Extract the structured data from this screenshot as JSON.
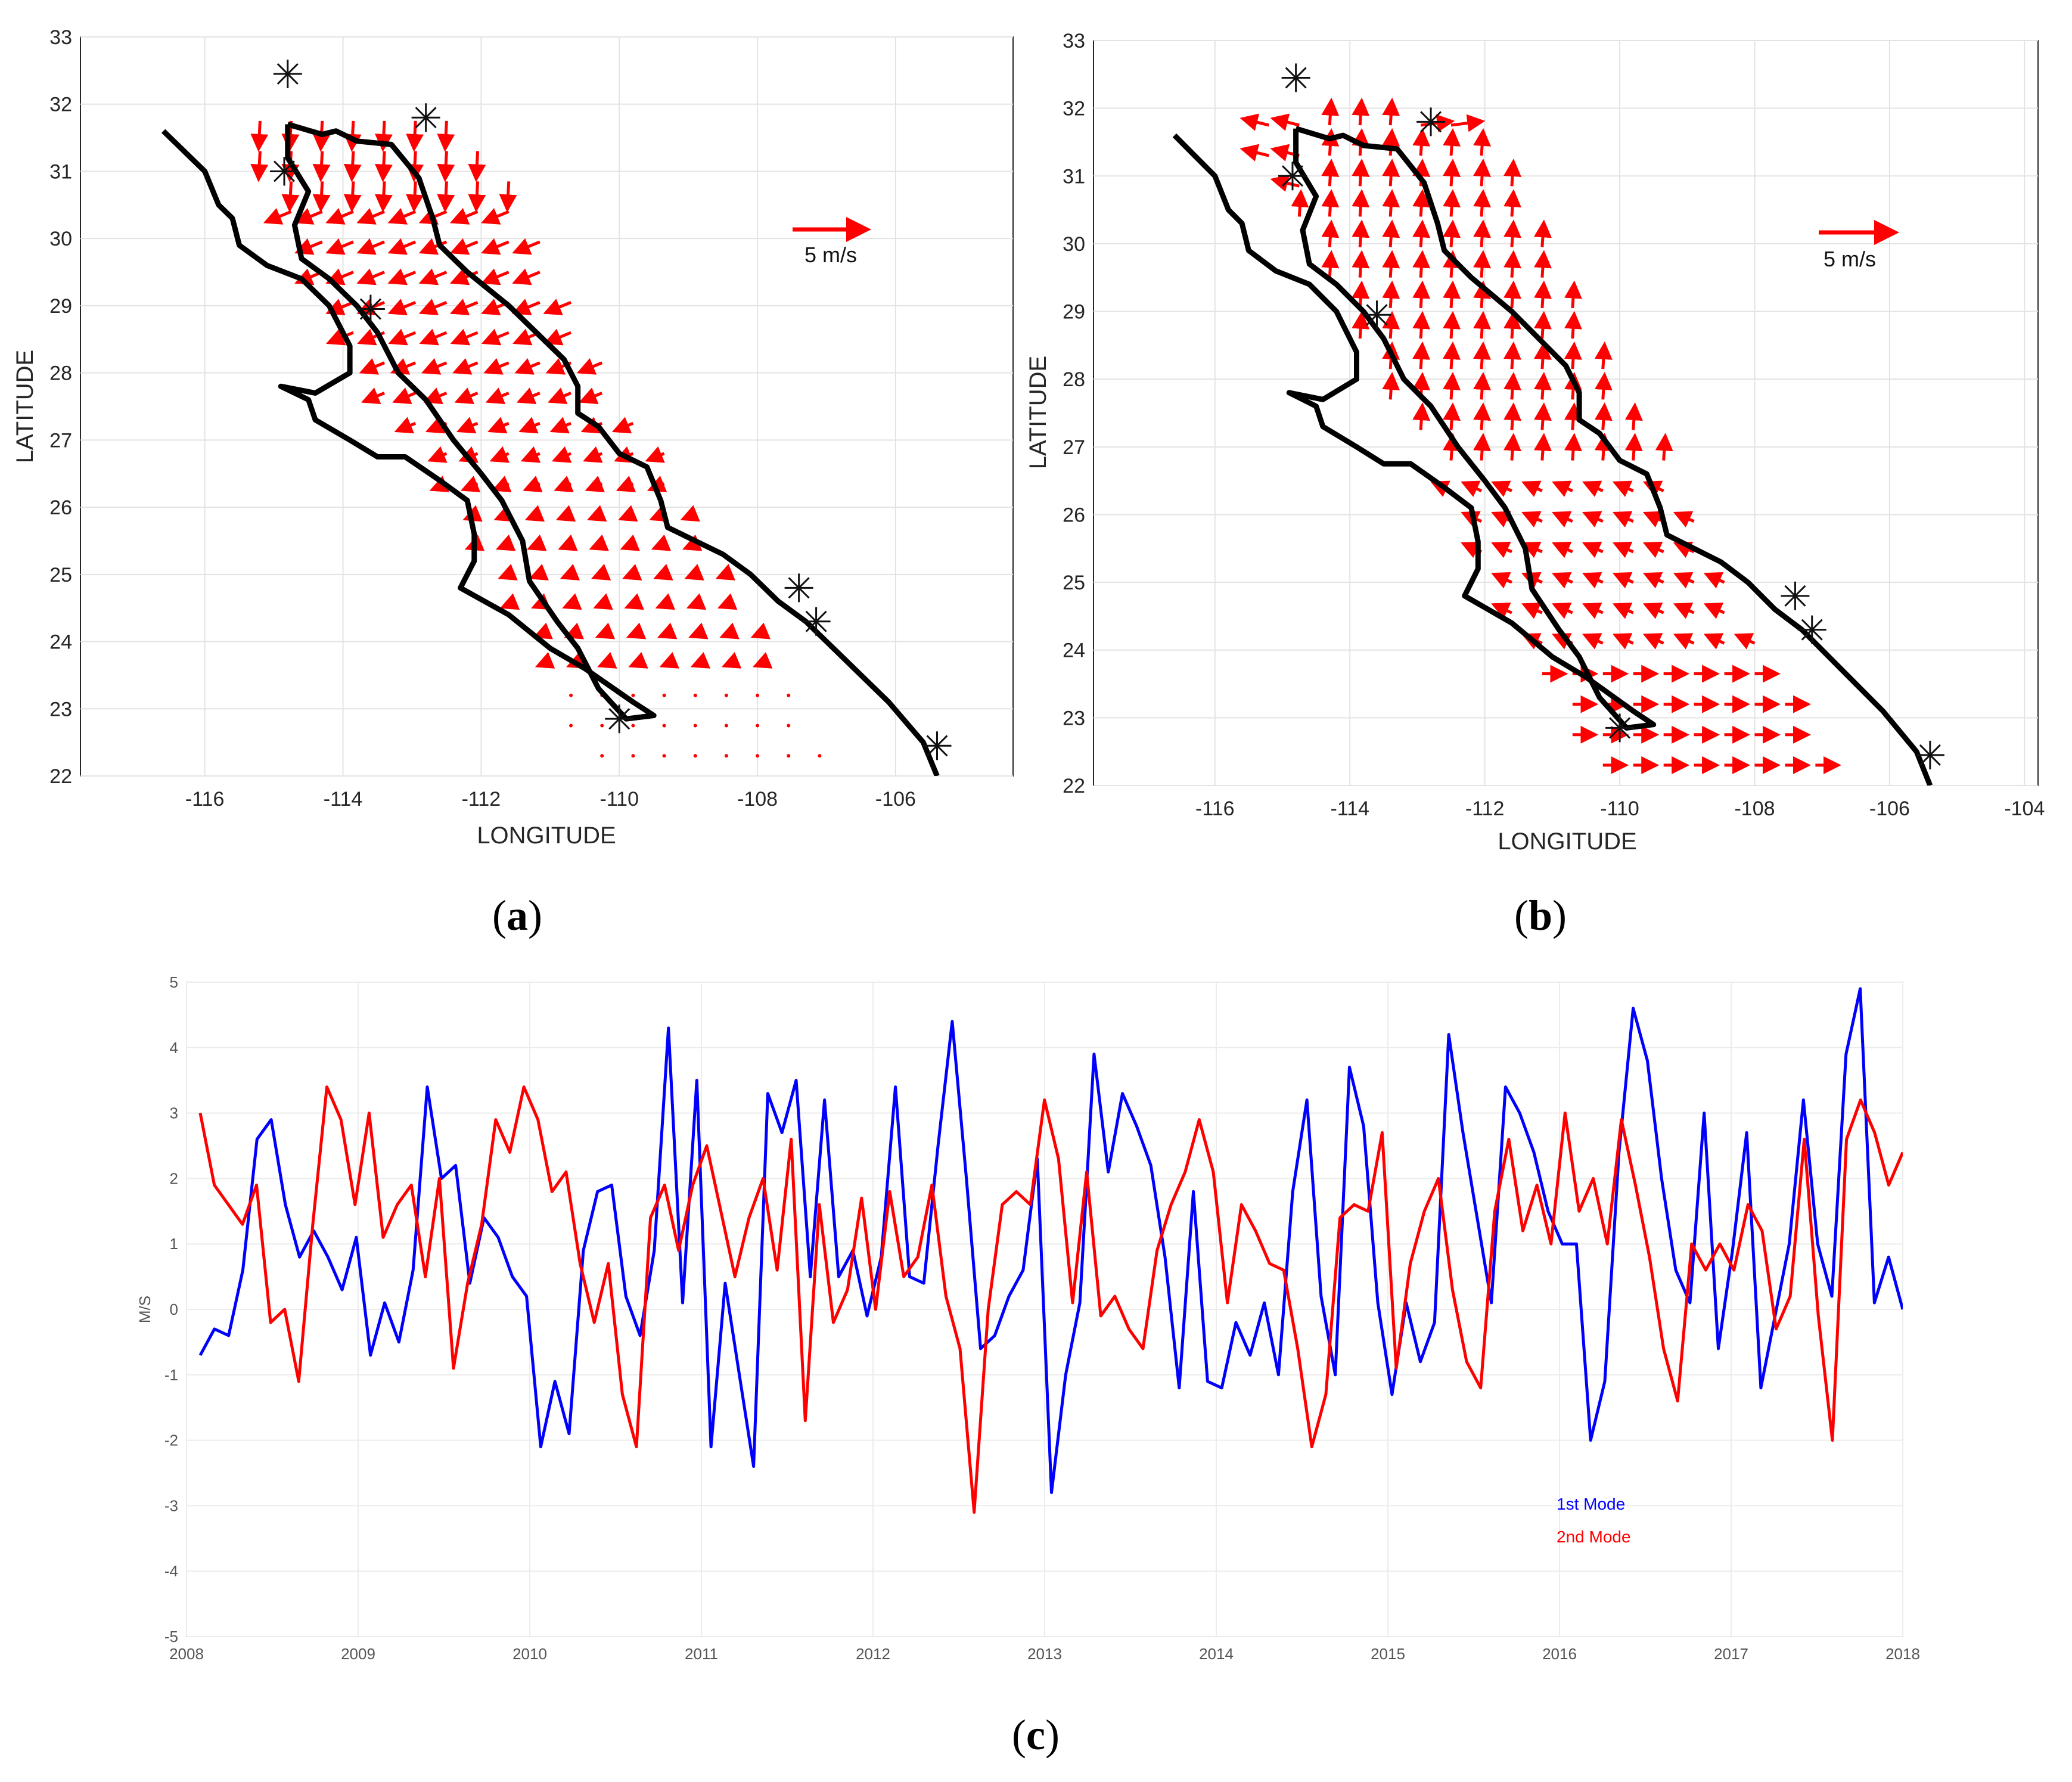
{
  "panels": [
    {
      "id": "a",
      "label": "a",
      "xlabel": "LONGITUDE",
      "ylabel": "LATITUDE",
      "xticks": [
        "-116",
        "-114",
        "-112",
        "-110",
        "-108",
        "-106"
      ],
      "yticks": [
        "22",
        "23",
        "24",
        "25",
        "26",
        "27",
        "28",
        "29",
        "30",
        "31",
        "32",
        "33"
      ],
      "scale_label": "5 m/s"
    },
    {
      "id": "b",
      "label": "b",
      "xlabel": "LONGITUDE",
      "ylabel": "LATITUDE",
      "xticks": [
        "-116",
        "-114",
        "-112",
        "-110",
        "-108",
        "-106",
        "-104"
      ],
      "yticks": [
        "22",
        "23",
        "24",
        "25",
        "26",
        "27",
        "28",
        "29",
        "30",
        "31",
        "32",
        "33"
      ],
      "scale_label": "5 m/s"
    },
    {
      "id": "c",
      "label": "c"
    }
  ],
  "colors": {
    "arrow": "#ff0000",
    "coast": "#000000",
    "mode1": "#0000ff",
    "mode2": "#ff0000"
  },
  "chart_data": [
    {
      "type": "quiver",
      "panel": "a",
      "xlabel": "LONGITUDE",
      "ylabel": "LATITUDE",
      "xlim": [
        -117.8,
        -104.3
      ],
      "ylim": [
        22,
        33
      ],
      "scale": {
        "label": "5 m/s",
        "u": 5,
        "v": 0
      },
      "stations": [
        [
          -114.8,
          32.45
        ],
        [
          -112.8,
          31.8
        ],
        [
          -114.85,
          31.0
        ],
        [
          -113.6,
          28.95
        ],
        [
          -110.0,
          22.85
        ],
        [
          -107.4,
          24.8
        ],
        [
          -107.15,
          24.3
        ],
        [
          -105.4,
          22.45
        ]
      ],
      "coastline_mainland": [
        [
          -114.8,
          31.7
        ],
        [
          -114.3,
          31.55
        ],
        [
          -114.1,
          31.6
        ],
        [
          -113.8,
          31.45
        ],
        [
          -113.3,
          31.4
        ],
        [
          -112.9,
          30.9
        ],
        [
          -112.7,
          30.3
        ],
        [
          -112.6,
          29.9
        ],
        [
          -112.2,
          29.5
        ],
        [
          -111.6,
          29.0
        ],
        [
          -111.2,
          28.6
        ],
        [
          -110.8,
          28.2
        ],
        [
          -110.6,
          27.8
        ],
        [
          -110.6,
          27.4
        ],
        [
          -110.3,
          27.2
        ],
        [
          -110.0,
          26.8
        ],
        [
          -109.6,
          26.6
        ],
        [
          -109.4,
          26.1
        ],
        [
          -109.3,
          25.7
        ],
        [
          -108.9,
          25.5
        ],
        [
          -108.5,
          25.3
        ],
        [
          -108.1,
          25.0
        ],
        [
          -107.7,
          24.6
        ],
        [
          -107.3,
          24.3
        ],
        [
          -106.7,
          23.7
        ],
        [
          -106.1,
          23.1
        ],
        [
          -105.6,
          22.5
        ],
        [
          -105.4,
          22.0
        ]
      ],
      "coastline_peninsula": [
        [
          -116.6,
          31.6
        ],
        [
          -116.3,
          31.3
        ],
        [
          -116.0,
          31.0
        ],
        [
          -115.8,
          30.5
        ],
        [
          -115.6,
          30.3
        ],
        [
          -115.5,
          29.9
        ],
        [
          -115.1,
          29.6
        ],
        [
          -114.6,
          29.4
        ],
        [
          -114.2,
          29.0
        ],
        [
          -113.9,
          28.4
        ],
        [
          -113.9,
          28.0
        ],
        [
          -114.4,
          27.7
        ],
        [
          -114.9,
          27.8
        ],
        [
          -114.5,
          27.6
        ],
        [
          -114.4,
          27.3
        ],
        [
          -113.9,
          27.0
        ],
        [
          -113.5,
          26.75
        ],
        [
          -113.1,
          26.75
        ],
        [
          -112.6,
          26.4
        ],
        [
          -112.2,
          26.1
        ],
        [
          -112.1,
          25.6
        ],
        [
          -112.1,
          25.2
        ],
        [
          -112.3,
          24.8
        ],
        [
          -111.6,
          24.4
        ],
        [
          -111.0,
          23.9
        ],
        [
          -110.5,
          23.6
        ],
        [
          -109.8,
          23.1
        ],
        [
          -109.5,
          22.9
        ],
        [
          -109.9,
          22.85
        ],
        [
          -110.3,
          23.3
        ],
        [
          -110.6,
          23.9
        ],
        [
          -110.9,
          24.3
        ],
        [
          -111.3,
          24.9
        ],
        [
          -111.4,
          25.5
        ],
        [
          -111.7,
          26.1
        ],
        [
          -112.0,
          26.5
        ],
        [
          -112.4,
          27.0
        ],
        [
          -112.8,
          27.6
        ],
        [
          -113.2,
          28.0
        ],
        [
          -113.5,
          28.6
        ],
        [
          -113.8,
          29.0
        ],
        [
          -114.2,
          29.4
        ],
        [
          -114.6,
          29.7
        ],
        [
          -114.7,
          30.2
        ],
        [
          -114.5,
          30.7
        ],
        [
          -114.8,
          31.2
        ],
        [
          -114.8,
          31.7
        ]
      ]
    },
    {
      "type": "quiver",
      "panel": "b",
      "xlabel": "LONGITUDE",
      "ylabel": "LATITUDE",
      "xlim": [
        -117.8,
        -103.8
      ],
      "ylim": [
        22,
        33
      ],
      "scale": {
        "label": "5 m/s",
        "u": 5,
        "v": 0
      },
      "stations": [
        [
          -114.8,
          32.45
        ],
        [
          -112.8,
          31.8
        ],
        [
          -114.85,
          31.0
        ],
        [
          -113.6,
          28.95
        ],
        [
          -110.0,
          22.85
        ],
        [
          -107.4,
          24.8
        ],
        [
          -107.15,
          24.3
        ],
        [
          -105.4,
          22.45
        ]
      ],
      "coastline_mainland": [
        [
          -114.8,
          31.7
        ],
        [
          -114.3,
          31.55
        ],
        [
          -114.1,
          31.6
        ],
        [
          -113.8,
          31.45
        ],
        [
          -113.3,
          31.4
        ],
        [
          -112.9,
          30.9
        ],
        [
          -112.7,
          30.3
        ],
        [
          -112.6,
          29.9
        ],
        [
          -112.2,
          29.5
        ],
        [
          -111.6,
          29.0
        ],
        [
          -111.2,
          28.6
        ],
        [
          -110.8,
          28.2
        ],
        [
          -110.6,
          27.8
        ],
        [
          -110.6,
          27.4
        ],
        [
          -110.3,
          27.2
        ],
        [
          -110.0,
          26.8
        ],
        [
          -109.6,
          26.6
        ],
        [
          -109.4,
          26.1
        ],
        [
          -109.3,
          25.7
        ],
        [
          -108.9,
          25.5
        ],
        [
          -108.5,
          25.3
        ],
        [
          -108.1,
          25.0
        ],
        [
          -107.7,
          24.6
        ],
        [
          -107.3,
          24.3
        ],
        [
          -106.7,
          23.7
        ],
        [
          -106.1,
          23.1
        ],
        [
          -105.6,
          22.5
        ],
        [
          -105.4,
          22.0
        ]
      ],
      "coastline_peninsula": [
        [
          -116.6,
          31.6
        ],
        [
          -116.3,
          31.3
        ],
        [
          -116.0,
          31.0
        ],
        [
          -115.8,
          30.5
        ],
        [
          -115.6,
          30.3
        ],
        [
          -115.5,
          29.9
        ],
        [
          -115.1,
          29.6
        ],
        [
          -114.6,
          29.4
        ],
        [
          -114.2,
          29.0
        ],
        [
          -113.9,
          28.4
        ],
        [
          -113.9,
          28.0
        ],
        [
          -114.4,
          27.7
        ],
        [
          -114.9,
          27.8
        ],
        [
          -114.5,
          27.6
        ],
        [
          -114.4,
          27.3
        ],
        [
          -113.9,
          27.0
        ],
        [
          -113.5,
          26.75
        ],
        [
          -113.1,
          26.75
        ],
        [
          -112.6,
          26.4
        ],
        [
          -112.2,
          26.1
        ],
        [
          -112.1,
          25.6
        ],
        [
          -112.1,
          25.2
        ],
        [
          -112.3,
          24.8
        ],
        [
          -111.6,
          24.4
        ],
        [
          -111.0,
          23.9
        ],
        [
          -110.5,
          23.6
        ],
        [
          -109.8,
          23.1
        ],
        [
          -109.5,
          22.9
        ],
        [
          -109.9,
          22.85
        ],
        [
          -110.3,
          23.3
        ],
        [
          -110.6,
          23.9
        ],
        [
          -110.9,
          24.3
        ],
        [
          -111.3,
          24.9
        ],
        [
          -111.4,
          25.5
        ],
        [
          -111.7,
          26.1
        ],
        [
          -112.0,
          26.5
        ],
        [
          -112.4,
          27.0
        ],
        [
          -112.8,
          27.6
        ],
        [
          -113.2,
          28.0
        ],
        [
          -113.5,
          28.6
        ],
        [
          -113.8,
          29.0
        ],
        [
          -114.2,
          29.4
        ],
        [
          -114.6,
          29.7
        ],
        [
          -114.7,
          30.2
        ],
        [
          -114.5,
          30.7
        ],
        [
          -114.8,
          31.2
        ],
        [
          -114.8,
          31.7
        ]
      ]
    },
    {
      "type": "line",
      "panel": "c",
      "ylabel": "M/S",
      "xlim": [
        2008,
        2018
      ],
      "ylim": [
        -5,
        5
      ],
      "yticks": [
        "5",
        "4",
        "3",
        "2",
        "1",
        "0",
        "-1",
        "-2",
        "-3",
        "-4",
        "-5"
      ],
      "xticks": [
        "2008",
        "2009",
        "2010",
        "2011",
        "2012",
        "2013",
        "2014",
        "2015",
        "2016",
        "2017",
        "2018"
      ],
      "legend": [
        "1st Mode",
        "2nd Mode"
      ],
      "series": [
        {
          "name": "1st Mode",
          "values": [
            -0.7,
            -0.3,
            -0.4,
            0.6,
            2.6,
            2.9,
            1.6,
            0.8,
            1.2,
            0.8,
            0.3,
            1.1,
            -0.7,
            0.1,
            -0.5,
            0.6,
            3.4,
            2.0,
            2.2,
            0.4,
            1.4,
            1.1,
            0.5,
            0.2,
            -2.1,
            -1.1,
            -1.9,
            0.9,
            1.8,
            1.9,
            0.2,
            -0.4,
            0.9,
            4.3,
            0.1,
            3.5,
            -2.1,
            0.4,
            -1.0,
            -2.4,
            3.3,
            2.7,
            3.5,
            0.5,
            3.2,
            0.5,
            0.9,
            -0.1,
            0.8,
            3.4,
            0.5,
            0.4,
            2.5,
            4.4,
            2.0,
            -0.6,
            -0.4,
            0.2,
            0.6,
            2.3,
            -2.8,
            -1.0,
            0.1,
            3.9,
            2.1,
            3.3,
            2.8,
            2.2,
            0.8,
            -1.2,
            1.8,
            -1.1,
            -1.2,
            -0.2,
            -0.7,
            0.1,
            -1.0,
            1.8,
            3.2,
            0.2,
            -1.0,
            3.7,
            2.8,
            0.1,
            -1.3,
            0.1,
            -0.8,
            -0.2,
            4.2,
            2.7,
            1.4,
            0.1,
            3.4,
            3.0,
            2.4,
            1.5,
            1.0,
            1.0,
            -2.0,
            -1.1,
            2.4,
            4.6,
            3.8,
            2.0,
            0.6,
            0.1,
            3.0,
            -0.6,
            0.9,
            2.7,
            -1.2,
            -0.1,
            1.0,
            3.2,
            1.0,
            0.2,
            3.9,
            4.9,
            0.1,
            0.8,
            0.0
          ]
        },
        {
          "name": "2nd Mode",
          "values": [
            3.0,
            1.9,
            1.6,
            1.3,
            1.9,
            -0.2,
            0.0,
            -1.1,
            1.3,
            3.4,
            2.9,
            1.6,
            3.0,
            1.1,
            1.6,
            1.9,
            0.5,
            2.0,
            -0.9,
            0.4,
            1.3,
            2.9,
            2.4,
            3.4,
            2.9,
            1.8,
            2.1,
            0.7,
            -0.2,
            0.7,
            -1.3,
            -2.1,
            1.4,
            1.9,
            0.9,
            1.9,
            2.5,
            1.5,
            0.5,
            1.4,
            2.0,
            0.6,
            2.6,
            -1.7,
            1.6,
            -0.2,
            0.3,
            1.7,
            0.0,
            1.8,
            0.5,
            0.8,
            1.9,
            0.2,
            -0.6,
            -3.1,
            0.0,
            1.6,
            1.8,
            1.6,
            3.2,
            2.3,
            0.1,
            2.1,
            -0.1,
            0.2,
            -0.3,
            -0.6,
            0.9,
            1.6,
            2.1,
            2.9,
            2.1,
            0.1,
            1.6,
            1.2,
            0.7,
            0.6,
            -0.6,
            -2.1,
            -1.3,
            1.4,
            1.6,
            1.5,
            2.7,
            -0.9,
            0.7,
            1.5,
            2.0,
            0.3,
            -0.8,
            -1.2,
            1.5,
            2.6,
            1.2,
            1.9,
            1.0,
            3.0,
            1.5,
            2.0,
            1.0,
            2.9,
            1.9,
            0.8,
            -0.6,
            -1.4,
            1.0,
            0.6,
            1.0,
            0.6,
            1.6,
            1.2,
            -0.3,
            0.2,
            2.6,
            -0.1,
            -2.0,
            2.6,
            3.2,
            2.7,
            1.9,
            2.4
          ]
        }
      ]
    }
  ]
}
